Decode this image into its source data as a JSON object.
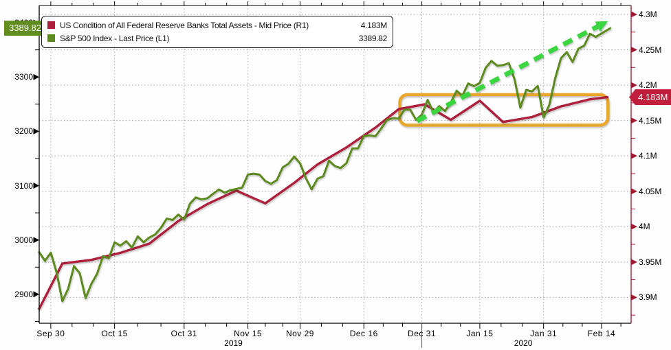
{
  "colors": {
    "fed_line": "#ad1f3c",
    "sp500_line": "#5c8a1e",
    "trend_arrow": "#3bd53f",
    "highlight_box": "#e9a62d",
    "right_axis": "#9e1c33",
    "left_axis": "#000000",
    "grid": "#8c8c8c",
    "sp500_tag_bg": "#618c1e",
    "fed_tag_bg": "#c01e3c"
  },
  "legend": {
    "items": [
      {
        "label": "US Condition of All Federal Reserve Banks Total Assets - Mid Price (R1)",
        "value": "4.183M",
        "color": "#b01e3e"
      },
      {
        "label": "S&P 500 Index - Last Price (L1)",
        "value": "3389.82",
        "color": "#5c8a1e"
      }
    ]
  },
  "tags": {
    "sp500_last": {
      "text": "3389.82"
    },
    "fed_last": {
      "text": "4.183M"
    }
  },
  "axes": {
    "left": {
      "ticks": [
        {
          "label": "2900",
          "value": 2900
        },
        {
          "label": "3000",
          "value": 3000
        },
        {
          "label": "3100",
          "value": 3100
        },
        {
          "label": "3200",
          "value": 3200
        },
        {
          "label": "3300",
          "value": 3300
        },
        {
          "label": "3400",
          "value": 3400
        }
      ]
    },
    "right": {
      "ticks": [
        {
          "label": "3.9M",
          "value": 3.9
        },
        {
          "label": "3.95M",
          "value": 3.95
        },
        {
          "label": "4M",
          "value": 4.0
        },
        {
          "label": "4.05M",
          "value": 4.05
        },
        {
          "label": "4.1M",
          "value": 4.1
        },
        {
          "label": "4.15M",
          "value": 4.15
        },
        {
          "label": "4.2M",
          "value": 4.2
        },
        {
          "label": "4.25M",
          "value": 4.25
        },
        {
          "label": "4.3M",
          "value": 4.3
        }
      ]
    },
    "x": {
      "ticks": [
        {
          "label": "Sep 30",
          "td": 2
        },
        {
          "label": "Oct 15",
          "td": 13
        },
        {
          "label": "Oct 31",
          "td": 25
        },
        {
          "label": "Nov 15",
          "td": 36
        },
        {
          "label": "Nov 29",
          "td": 45
        },
        {
          "label": "Dec 16",
          "td": 56
        },
        {
          "label": "Dec 31",
          "td": 66
        },
        {
          "label": "Jan 15",
          "td": 76
        },
        {
          "label": "Jan 31",
          "td": 87
        },
        {
          "label": "Feb 14",
          "td": 97
        }
      ],
      "years": [
        {
          "label": "2019",
          "td": 33.5
        },
        {
          "label": "2020",
          "td": 83.5
        }
      ]
    }
  },
  "chart_data": {
    "type": "line",
    "x_unit": "trading-day index from Sep 26 2019",
    "xlim": [
      0,
      102.1
    ],
    "ylim_left": [
      2846.8,
      3431.6
    ],
    "ylim_right": [
      3.8635,
      4.3126
    ],
    "grid": "dotted, gridlines at right-axis ticks and x ticks",
    "legend_position": "top-left",
    "series": [
      {
        "name": "US Condition of All Federal Reserve Banks Total Assets - Mid Price",
        "axis": "right",
        "unit": "M (millions USD, i.e. 4.183M = $4.183T)",
        "points": [
          [
            0,
            3.884
          ],
          [
            4,
            3.948
          ],
          [
            9,
            3.953
          ],
          [
            14,
            3.963
          ],
          [
            19,
            3.976
          ],
          [
            24,
            4.008
          ],
          [
            29,
            4.032
          ],
          [
            34,
            4.051
          ],
          [
            39,
            4.033
          ],
          [
            44,
            4.062
          ],
          [
            48,
            4.088
          ],
          [
            53,
            4.112
          ],
          [
            58,
            4.14
          ],
          [
            62,
            4.166
          ],
          [
            66.5,
            4.173
          ],
          [
            71,
            4.151
          ],
          [
            76,
            4.178
          ],
          [
            80,
            4.148
          ],
          [
            85,
            4.155
          ],
          [
            90,
            4.17
          ],
          [
            95,
            4.18
          ],
          [
            98,
            4.183
          ]
        ]
      },
      {
        "name": "S&P 500 Index - Last Price",
        "axis": "left",
        "unit": "index points",
        "points": [
          [
            0,
            2977.6
          ],
          [
            1,
            2961.8
          ],
          [
            2,
            2976.7
          ],
          [
            3,
            2940.3
          ],
          [
            4,
            2887.6
          ],
          [
            5,
            2910.6
          ],
          [
            6,
            2952.0
          ],
          [
            7,
            2938.8
          ],
          [
            8,
            2893.1
          ],
          [
            9,
            2919.4
          ],
          [
            10,
            2938.1
          ],
          [
            11,
            2970.3
          ],
          [
            12,
            2966.2
          ],
          [
            13,
            2995.7
          ],
          [
            14,
            2989.7
          ],
          [
            15,
            2997.9
          ],
          [
            16,
            2986.2
          ],
          [
            17,
            3006.7
          ],
          [
            18,
            2996.0
          ],
          [
            19,
            3004.5
          ],
          [
            20,
            3010.3
          ],
          [
            21,
            3022.6
          ],
          [
            22,
            3039.4
          ],
          [
            23,
            3036.9
          ],
          [
            24,
            3046.8
          ],
          [
            25,
            3037.6
          ],
          [
            26,
            3066.9
          ],
          [
            27,
            3078.3
          ],
          [
            28,
            3074.6
          ],
          [
            29,
            3076.8
          ],
          [
            30,
            3085.2
          ],
          [
            31,
            3093.1
          ],
          [
            32,
            3087.0
          ],
          [
            33,
            3091.8
          ],
          [
            34,
            3094.0
          ],
          [
            35,
            3096.6
          ],
          [
            36,
            3120.5
          ],
          [
            37,
            3122.0
          ],
          [
            38,
            3120.2
          ],
          [
            39,
            3108.5
          ],
          [
            40,
            3103.5
          ],
          [
            41,
            3110.3
          ],
          [
            42,
            3133.6
          ],
          [
            43,
            3140.5
          ],
          [
            44,
            3153.6
          ],
          [
            45,
            3141.0
          ],
          [
            46,
            3113.9
          ],
          [
            47,
            3093.2
          ],
          [
            48,
            3112.8
          ],
          [
            49,
            3117.4
          ],
          [
            50,
            3145.9
          ],
          [
            51,
            3136.0
          ],
          [
            52,
            3132.5
          ],
          [
            53,
            3141.6
          ],
          [
            54,
            3168.6
          ],
          [
            55,
            3168.8
          ],
          [
            56,
            3191.4
          ],
          [
            57,
            3192.5
          ],
          [
            58,
            3191.1
          ],
          [
            59,
            3205.4
          ],
          [
            60,
            3221.2
          ],
          [
            61,
            3224.0
          ],
          [
            62,
            3223.4
          ],
          [
            63,
            3239.9
          ],
          [
            64,
            3240.0
          ],
          [
            65,
            3221.3
          ],
          [
            66,
            3230.8
          ],
          [
            67,
            3257.9
          ],
          [
            68,
            3234.9
          ],
          [
            69,
            3246.3
          ],
          [
            70,
            3237.2
          ],
          [
            71,
            3253.1
          ],
          [
            72,
            3274.7
          ],
          [
            73,
            3265.4
          ],
          [
            74,
            3288.1
          ],
          [
            75,
            3283.2
          ],
          [
            76,
            3289.3
          ],
          [
            77,
            3316.8
          ],
          [
            78,
            3329.6
          ],
          [
            79,
            3320.8
          ],
          [
            80,
            3321.8
          ],
          [
            81,
            3325.5
          ],
          [
            82,
            3295.5
          ],
          [
            83,
            3243.6
          ],
          [
            84,
            3276.2
          ],
          [
            85,
            3273.4
          ],
          [
            86,
            3283.7
          ],
          [
            87,
            3225.5
          ],
          [
            88,
            3248.9
          ],
          [
            89,
            3297.6
          ],
          [
            90,
            3334.7
          ],
          [
            91,
            3345.8
          ],
          [
            92,
            3327.7
          ],
          [
            93,
            3352.1
          ],
          [
            94,
            3357.8
          ],
          [
            95,
            3379.5
          ],
          [
            96,
            3373.9
          ],
          [
            97,
            3380.2
          ],
          [
            98.5,
            3389.82
          ]
        ]
      }
    ],
    "annotations": {
      "trend_arrow": {
        "type": "dashed-arrow",
        "x1": 65.2,
        "y1": 4.1495,
        "x2": 98.1,
        "y2": 4.2905,
        "axis": "right"
      },
      "highlight_box": {
        "type": "rounded-rect",
        "x1": 62.2,
        "x2": 98.1,
        "top": 4.1865,
        "bottom": 4.1435,
        "axis": "right"
      }
    }
  }
}
